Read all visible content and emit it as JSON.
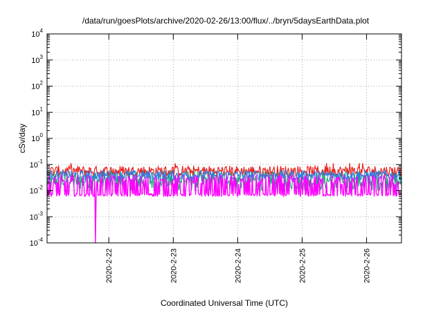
{
  "chart_data": {
    "type": "line",
    "title": "/data/run/goesPlots/archive/2020-02-26/13:00/flux/../bryn/5daysEarthData.plot",
    "xlabel": "Coordinated Universal Time (UTC)",
    "ylabel": "cSv/day",
    "x_scale": "time",
    "y_scale": "log",
    "xlim": [
      "2020-02-21T01:00",
      "2020-02-26T13:00"
    ],
    "ylim": [
      0.0001,
      10000
    ],
    "x_ticks": [
      "2020-02-22",
      "2020-02-23",
      "2020-02-24",
      "2020-02-25",
      "2020-02-26"
    ],
    "x_tick_labels": [
      "2020-2-22",
      "2020-2-23",
      "2020-2-24",
      "2020-2-25",
      "2020-2-26"
    ],
    "y_ticks": [
      {
        "base": "10",
        "exp": "-4",
        "value": 0.0001
      },
      {
        "base": "10",
        "exp": "-3",
        "value": 0.001
      },
      {
        "base": "10",
        "exp": "-2",
        "value": 0.01
      },
      {
        "base": "10",
        "exp": "-1",
        "value": 0.1
      },
      {
        "base": "10",
        "exp": "0",
        "value": 1
      },
      {
        "base": "10",
        "exp": "1",
        "value": 10
      },
      {
        "base": "10",
        "exp": "2",
        "value": 100
      },
      {
        "base": "10",
        "exp": "3",
        "value": 1000
      },
      {
        "base": "10",
        "exp": "4",
        "value": 10000
      }
    ],
    "grid": true,
    "grid_style": "dotted",
    "legend": "none",
    "series": [
      {
        "color": "#e8231e",
        "typical_range": [
          0.035,
          0.09
        ],
        "peak": 0.11
      },
      {
        "color": "#1fa77a",
        "typical_range": [
          0.01,
          0.06
        ]
      },
      {
        "color": "#2f7de1",
        "typical_range": [
          0.025,
          0.06
        ]
      },
      {
        "color": "#ff00ff",
        "typical_range": [
          0.006,
          0.04
        ],
        "dropouts": [
          {
            "at": "2020-02-21T19:00",
            "value": 0.0001
          }
        ]
      }
    ]
  }
}
